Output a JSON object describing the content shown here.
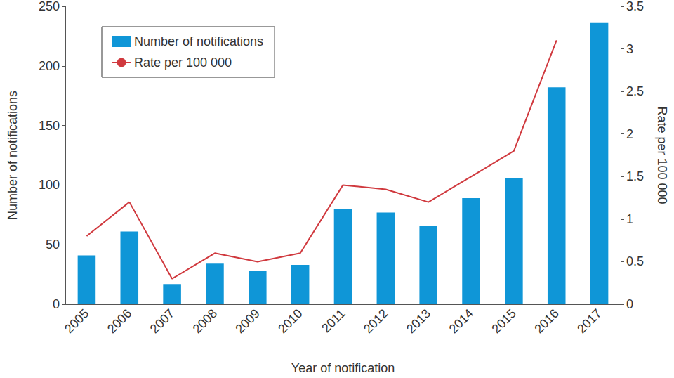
{
  "chart_data": {
    "type": "bar",
    "x_label": "Year of notification",
    "y_label": "Number of notifications",
    "y2_label": "Rate per 100 000",
    "categories": [
      "2005",
      "2006",
      "2007",
      "2008",
      "2009",
      "2010",
      "2011",
      "2012",
      "2013",
      "2014",
      "2015",
      "2016",
      "2017"
    ],
    "series": [
      {
        "name": "Number of notifications",
        "type": "bar",
        "color": "#0f96d7",
        "values": [
          41,
          61,
          17,
          34,
          28,
          33,
          80,
          77,
          66,
          89,
          106,
          182,
          236
        ]
      },
      {
        "name": "Rate per 100 000",
        "type": "line",
        "color": "#d0393e",
        "axis": "y2",
        "values": [
          0.8,
          1.2,
          0.3,
          0.6,
          0.5,
          0.6,
          1.4,
          1.35,
          1.2,
          1.5,
          1.8,
          3.1,
          null
        ]
      }
    ],
    "ylim": [
      0,
      250
    ],
    "yticks": [
      0,
      50,
      100,
      150,
      200,
      250
    ],
    "y2lim": [
      0,
      3.5
    ],
    "y2ticks": [
      0,
      0.5,
      1,
      1.5,
      2,
      2.5,
      3,
      3.5
    ],
    "grid": false,
    "legend": "upper left"
  }
}
